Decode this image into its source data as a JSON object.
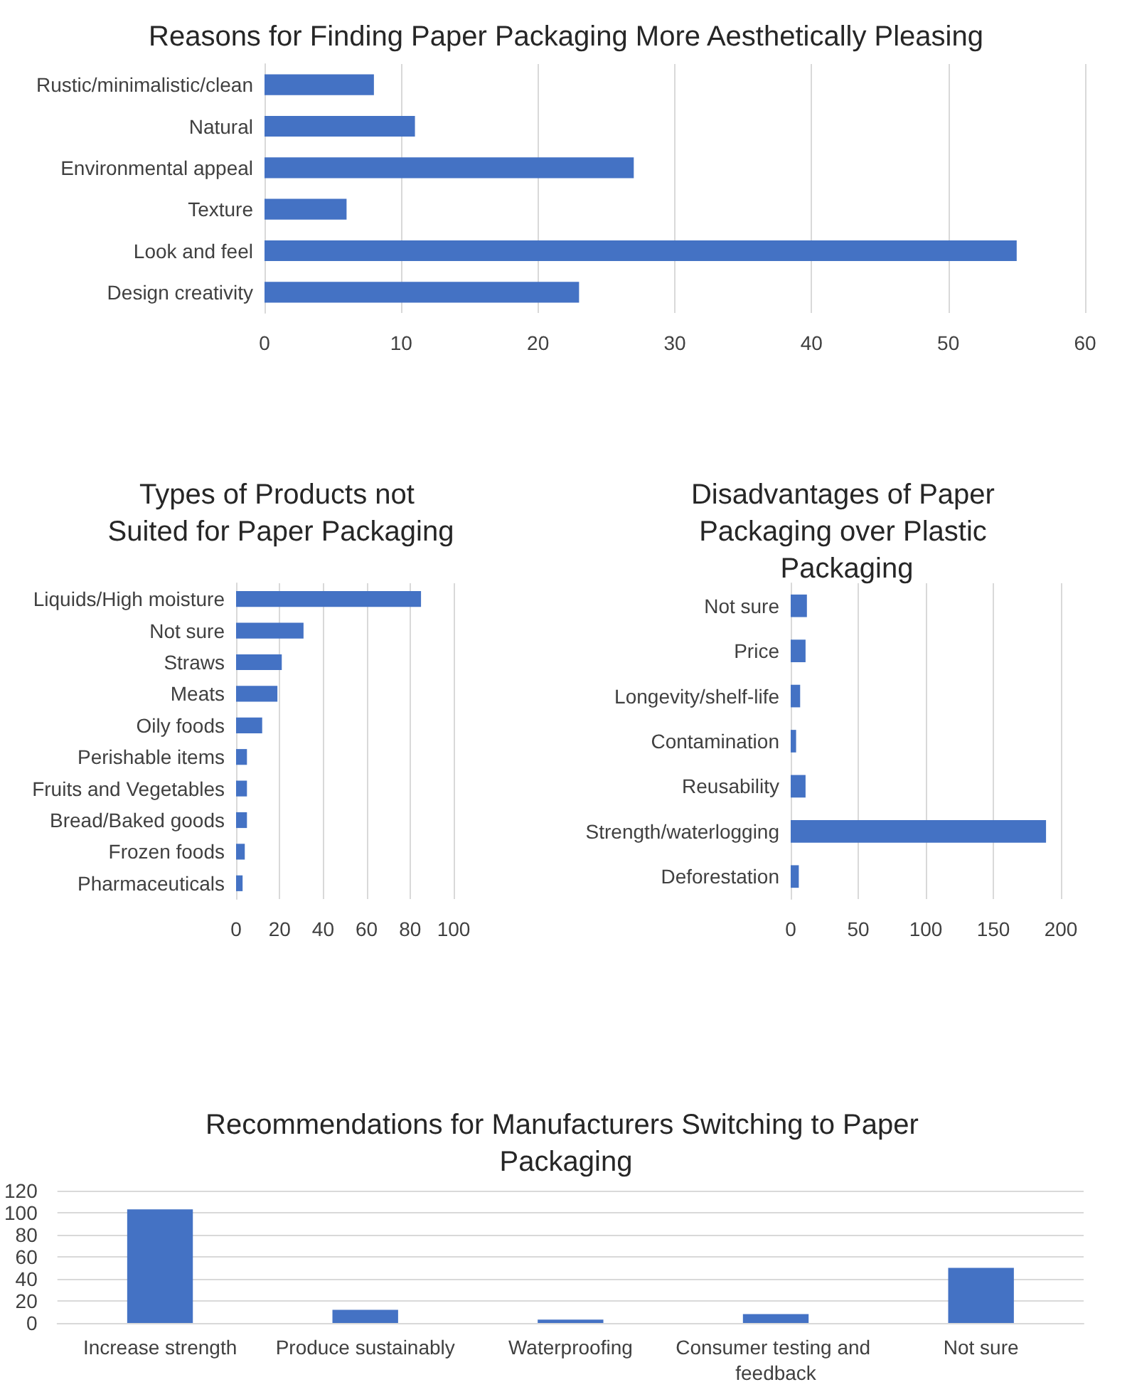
{
  "chart_data": [
    {
      "type": "bar",
      "orientation": "horizontal",
      "title": "Reasons for Finding Paper Packaging More Aesthetically Pleasing",
      "categories": [
        "Rustic/minimalistic/clean",
        "Natural",
        "Environmental appeal",
        "Texture",
        "Look and feel",
        "Design creativity"
      ],
      "values": [
        8,
        11,
        27,
        6,
        55,
        23
      ],
      "color": "#4472c4",
      "xlim": [
        0,
        60
      ],
      "xticks": [
        0,
        10,
        20,
        30,
        40,
        50,
        60
      ],
      "grid": "x"
    },
    {
      "type": "bar",
      "orientation": "horizontal",
      "title": "Types of Products not Suited for Paper Packaging",
      "categories": [
        "Liquids/High moisture",
        "Not sure",
        "Straws",
        "Meats",
        "Oily foods",
        "Perishable items",
        "Fruits and Vegetables",
        "Bread/Baked goods",
        "Frozen foods",
        "Pharmaceuticals"
      ],
      "values": [
        85,
        31,
        21,
        19,
        12,
        5,
        5,
        5,
        4,
        3
      ],
      "color": "#4472c4",
      "xlim": [
        0,
        100
      ],
      "xticks": [
        0,
        20,
        40,
        60,
        80,
        100
      ],
      "grid": "x"
    },
    {
      "type": "bar",
      "orientation": "horizontal",
      "title": "Disadvantages of Paper Packaging over Plastic Packaging",
      "categories": [
        "Not sure",
        "Price",
        "Longevity/shelf-life",
        "Contamination",
        "Reusability",
        "Strength/waterlogging",
        "Deforestation"
      ],
      "values": [
        12,
        11,
        7,
        4,
        11,
        189,
        6
      ],
      "color": "#4472c4",
      "xlim": [
        0,
        200
      ],
      "xticks": [
        0,
        50,
        100,
        150,
        200
      ],
      "grid": "x"
    },
    {
      "type": "bar",
      "title": "Recommendations for Manufacturers Switching to Paper Packaging",
      "categories": [
        "Increase strength",
        "Produce sustainably",
        "Waterproofing",
        "Consumer testing and feedback",
        "Not sure"
      ],
      "values": [
        103,
        12,
        3,
        8,
        50
      ],
      "color": "#4472c4",
      "ylim": [
        0,
        120
      ],
      "yticks": [
        0,
        20,
        40,
        60,
        80,
        100,
        120
      ],
      "grid": "y"
    }
  ]
}
